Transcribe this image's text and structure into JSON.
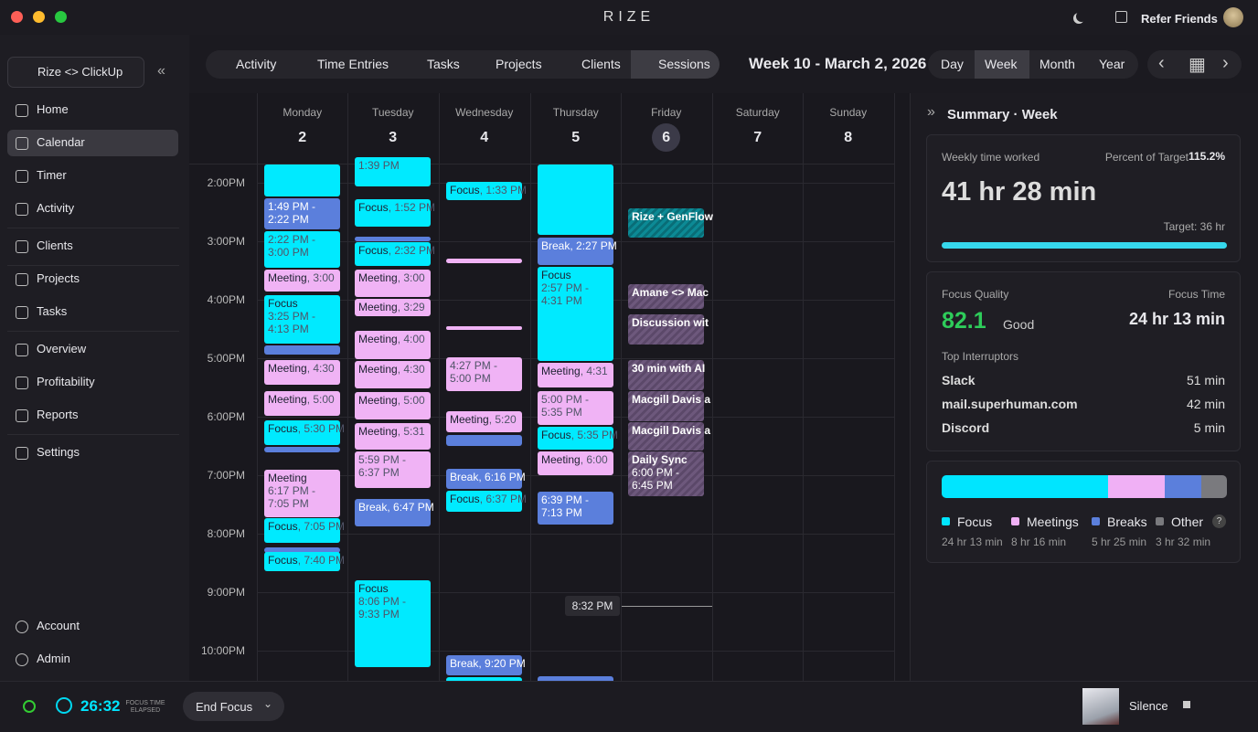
{
  "app": {
    "title": "RIZE",
    "refer": "Refer Friends"
  },
  "sidebar": {
    "workspace": "Rize <> ClickUp",
    "nav": [
      "Home",
      "Calendar",
      "Timer",
      "Activity",
      "Clients",
      "Projects",
      "Tasks",
      "Overview",
      "Profitability",
      "Reports",
      "Settings"
    ],
    "bottom": [
      "Account",
      "Admin"
    ]
  },
  "tabs": [
    "Activity",
    "Time Entries",
    "Tasks",
    "Projects",
    "Clients",
    "Sessions"
  ],
  "week_label": "Week 10 - March 2, 2026",
  "ranges": [
    "Day",
    "Week",
    "Month",
    "Year"
  ],
  "days": [
    {
      "name": "Monday",
      "date": "2"
    },
    {
      "name": "Tuesday",
      "date": "3"
    },
    {
      "name": "Wednesday",
      "date": "4"
    },
    {
      "name": "Thursday",
      "date": "5"
    },
    {
      "name": "Friday",
      "date": "6"
    },
    {
      "name": "Saturday",
      "date": "7"
    },
    {
      "name": "Sunday",
      "date": "8"
    }
  ],
  "hours": [
    "2:00PM",
    "3:00PM",
    "4:00PM",
    "5:00PM",
    "6:00PM",
    "7:00PM",
    "8:00PM",
    "9:00PM",
    "10:00PM"
  ],
  "now": "8:32 PM",
  "events": [
    {
      "time": "1:49 PM - 2:22 PM"
    },
    {
      "time": "2:22 PM - 3:00 PM"
    },
    {
      "title": "Meeting",
      "detail": ", 3:00"
    },
    {
      "title": "Focus",
      "time": "3:25 PM - 4:13 PM"
    },
    {
      "title": "Meeting",
      "detail": ", 4:30"
    },
    {
      "title": "Meeting",
      "detail": ", 5:00"
    },
    {
      "title": "Focus",
      "detail": ", 5:30 PM"
    },
    {
      "title": "Meeting",
      "time": "6:17 PM - 7:05 PM"
    },
    {
      "title": "Focus",
      "detail": ", 7:05 PM"
    },
    {
      "title": "Focus",
      "detail": ", 7:40 PM"
    },
    {
      "time": "1:39 PM"
    },
    {
      "title": "Focus",
      "detail": ", 1:52 PM"
    },
    {
      "title": "Focus",
      "detail": ", 2:32 PM"
    },
    {
      "title": "Meeting",
      "detail": ", 3:00"
    },
    {
      "title": "Meeting",
      "detail": ", 3:29"
    },
    {
      "title": "Meeting",
      "detail": ", 4:00"
    },
    {
      "title": "Meeting",
      "detail": ", 4:30"
    },
    {
      "title": "Meeting",
      "detail": ", 5:00"
    },
    {
      "title": "Meeting",
      "detail": ", 5:31"
    },
    {
      "time": "5:59 PM - 6:37 PM"
    },
    {
      "title": "Break",
      "detail": ", 6:47 PM"
    },
    {
      "title": "Focus",
      "time": "8:06 PM - 9:33 PM"
    },
    {
      "title": "Focus",
      "detail": ", 1:33 PM"
    },
    {
      "time": "4:27 PM - 5:00 PM"
    },
    {
      "title": "Meeting",
      "detail": ", 5:20"
    },
    {
      "title": "Break",
      "detail": ", 6:16 PM"
    },
    {
      "title": "Focus",
      "detail": ", 6:37 PM"
    },
    {
      "title": "Break",
      "detail": ", 9:20 PM"
    },
    {
      "title": "Break",
      "detail": ", 2:27 PM"
    },
    {
      "title": "Focus",
      "time": "2:57 PM - 4:31 PM"
    },
    {
      "title": "Meeting",
      "detail": ", 4:31"
    },
    {
      "time": "5:00 PM - 5:35 PM"
    },
    {
      "title": "Focus",
      "detail": ", 5:35 PM"
    },
    {
      "title": "Meeting",
      "detail": ", 6:00"
    },
    {
      "time": "6:39 PM - 7:13 PM"
    },
    {
      "title": "Rize + GenFlow"
    },
    {
      "title": "Amane <> Mac"
    },
    {
      "title": "Discussion wit"
    },
    {
      "title": "30 min with AI"
    },
    {
      "title": "Macgill Davis a"
    },
    {
      "title": "Macgill Davis a"
    },
    {
      "title": "Daily Sync",
      "time": "6:00 PM - 6:45 PM"
    }
  ],
  "summary": {
    "title": "Summary · Week",
    "worked_label": "Weekly time worked",
    "percent_label": "Percent of Target",
    "percent": "115.2%",
    "worked": "41 hr 28 min",
    "target": "Target: 36 hr",
    "quality_label": "Focus Quality",
    "quality": "82.1",
    "quality_word": "Good",
    "focus_time_label": "Focus Time",
    "focus_time": "24 hr 13 min",
    "interruptors_label": "Top Interruptors",
    "interruptors": [
      {
        "name": "Slack",
        "time": "51 min"
      },
      {
        "name": "mail.superhuman.com",
        "time": "42 min"
      },
      {
        "name": "Discord",
        "time": "5 min"
      }
    ],
    "breakdown": [
      {
        "name": "Focus",
        "color": "#00e5ff",
        "time": "24 hr 13 min"
      },
      {
        "name": "Meetings",
        "color": "#f0b0f5",
        "time": "8 hr 16 min"
      },
      {
        "name": "Breaks",
        "color": "#5b7fdc",
        "time": "5 hr 25 min"
      },
      {
        "name": "Other",
        "color": "#7a7a7e",
        "time": "3 hr 32 min"
      }
    ]
  },
  "footer": {
    "timer": "26:32",
    "timer_label": "FOCUS TIME ELAPSED",
    "button": "End Focus",
    "sound": "Silence"
  }
}
